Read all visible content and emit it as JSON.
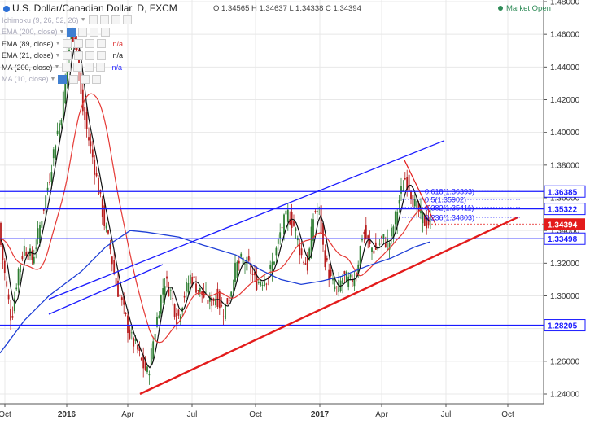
{
  "header": {
    "symbol": "U.S. Dollar/Canadian Dollar, D, FXCM",
    "ohlc": "O 1.34565 H 1.34637 L 1.34338 C 1.34394",
    "market_status": "Market Open"
  },
  "indicators": [
    {
      "label": "Ichimoku (9, 26, 52, 26)",
      "value": "",
      "value_color": "#d33",
      "dim": true
    },
    {
      "label": "EMA (200, close)",
      "value": "",
      "value_color": "#2a2aff",
      "dim": true
    },
    {
      "label": "EMA (89, close)",
      "value": "n/a",
      "value_color": "#d33",
      "dim": false
    },
    {
      "label": "EMA (21, close)",
      "value": "n/a",
      "value_color": "#222",
      "dim": false
    },
    {
      "label": "MA (200, close)",
      "value": "n/a",
      "value_color": "#2a2aff",
      "dim": false
    },
    {
      "label": "MA (10, close)",
      "value": "",
      "value_color": "#222",
      "dim": true
    }
  ],
  "chart_data": {
    "type": "candlestick",
    "y_ticks": [
      "1.48000",
      "1.46000",
      "1.44000",
      "1.42000",
      "1.40000",
      "1.38000",
      "1.36000",
      "1.34000",
      "1.32000",
      "1.30000",
      "1.28000",
      "1.26000",
      "1.24000"
    ],
    "x_ticks": [
      {
        "label": "Oct",
        "bold": false
      },
      {
        "label": "2016",
        "bold": true
      },
      {
        "label": "Apr",
        "bold": false
      },
      {
        "label": "Jul",
        "bold": false
      },
      {
        "label": "Oct",
        "bold": false
      },
      {
        "label": "2017",
        "bold": true
      },
      {
        "label": "Apr",
        "bold": false
      },
      {
        "label": "Jul",
        "bold": false
      },
      {
        "label": "Oct",
        "bold": false
      }
    ],
    "levels": [
      {
        "price": 1.36385,
        "label": "1.36385"
      },
      {
        "price": 1.35322,
        "label": "1.35322"
      },
      {
        "price": 1.33498,
        "label": "1.33498"
      },
      {
        "price": 1.28205,
        "label": "1.28205"
      }
    ],
    "current_price": {
      "price": 1.34394,
      "label": "1.34394"
    },
    "fibonacci": [
      {
        "price": 1.36393,
        "label": "0.618(1.36393)"
      },
      {
        "price": 1.35902,
        "label": "0.5(1.35902)"
      },
      {
        "price": 1.35411,
        "label": "0.382(1.35411)"
      },
      {
        "price": 1.34803,
        "label": "0.236(1.34803)"
      }
    ],
    "colors": {
      "up": "#2e7d32",
      "down": "#b71c1c",
      "level": "#1a1aff",
      "trend_red": "#e31b1b",
      "ema89": "#e53935",
      "ema21": "#111111",
      "ma200": "#1e3fd6",
      "axis_text": "#333333"
    }
  }
}
